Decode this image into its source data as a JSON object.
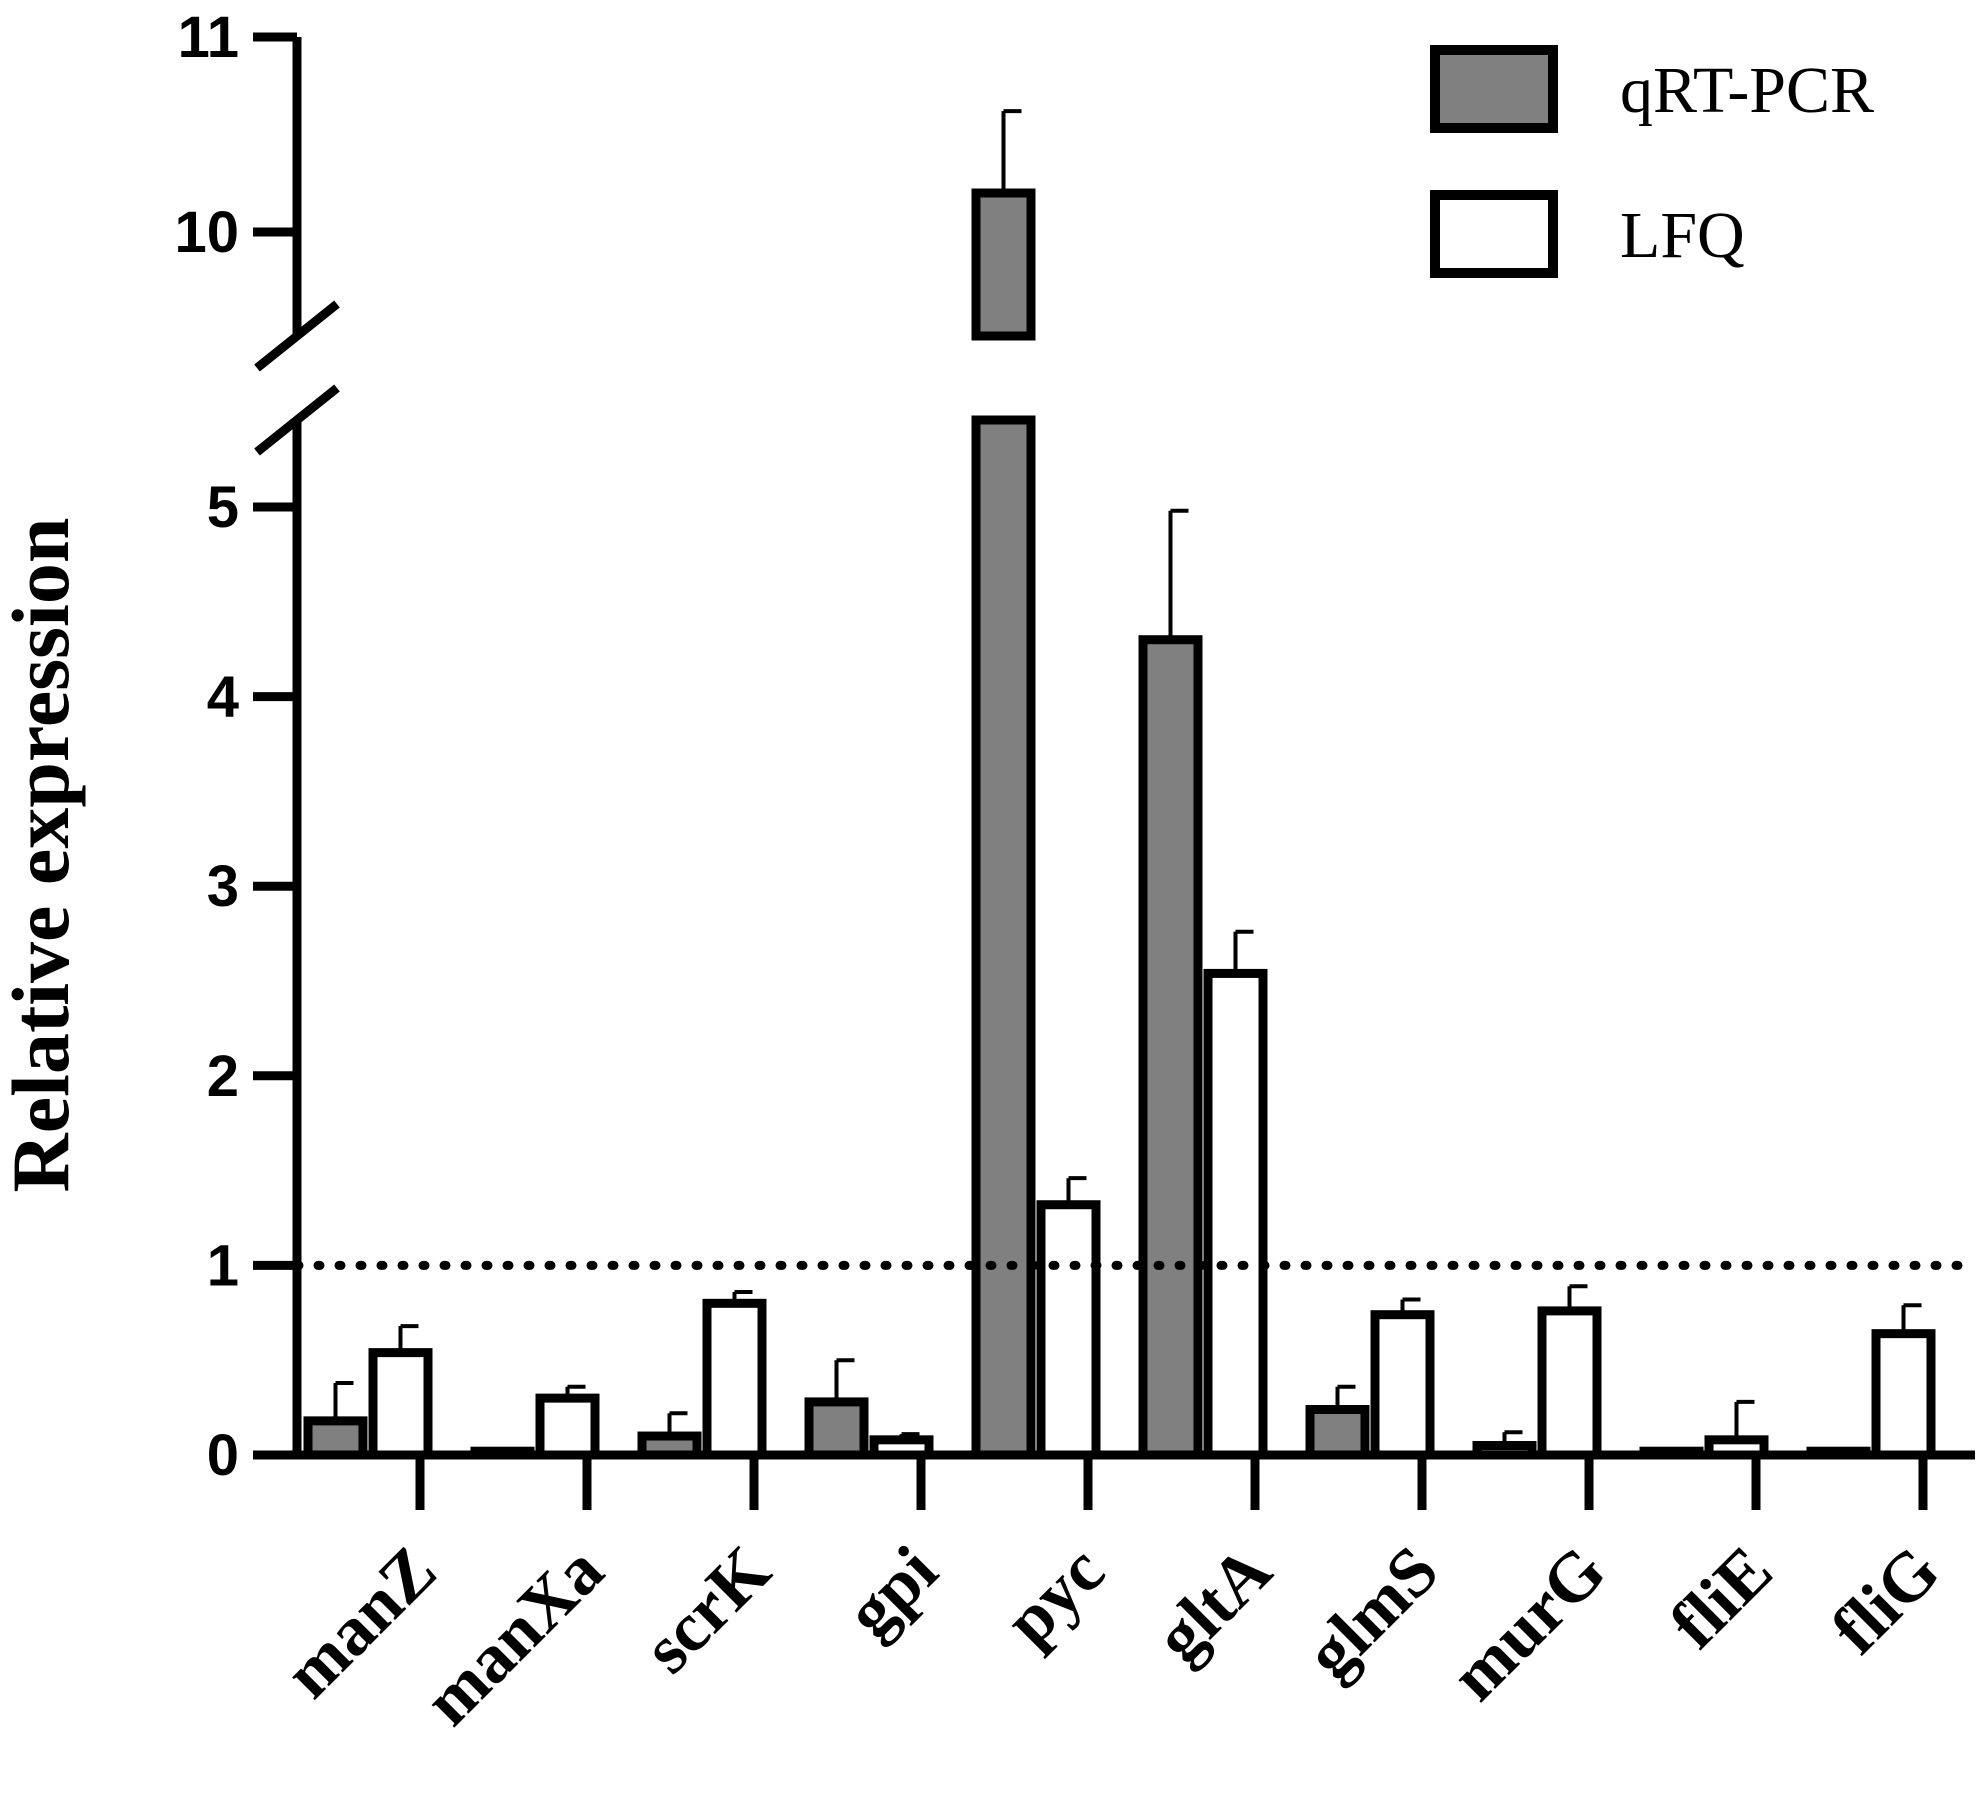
{
  "chart_data": {
    "type": "bar",
    "title": "",
    "xlabel": "",
    "ylabel": "Relative expression",
    "categories": [
      "manZ",
      "manXa",
      "scrK",
      "gpi",
      "pyc",
      "gltA",
      "glmS",
      "murG",
      "fliE",
      "fliG"
    ],
    "series": [
      {
        "name": "qRT-PCR",
        "color": "#808080",
        "values": [
          0.18,
          0.02,
          0.1,
          0.28,
          10.2,
          4.3,
          0.24,
          0.05,
          0.02,
          0.02
        ],
        "errors": [
          0.2,
          0.0,
          0.12,
          0.22,
          0.42,
          0.68,
          0.12,
          0.07,
          0.0,
          0.0
        ]
      },
      {
        "name": "LFQ",
        "color": "#ffffff",
        "values": [
          0.54,
          0.3,
          0.8,
          0.08,
          1.32,
          2.54,
          0.74,
          0.76,
          0.08,
          0.64
        ],
        "errors": [
          0.14,
          0.06,
          0.06,
          0.03,
          0.14,
          0.22,
          0.08,
          0.13,
          0.2,
          0.15
        ]
      }
    ],
    "y_axis": {
      "broken": true,
      "lower_segment": [
        0,
        5.5
      ],
      "upper_segment": [
        9.6,
        11
      ],
      "lower_ticks": [
        "0",
        "1",
        "2",
        "3",
        "4",
        "5"
      ],
      "upper_ticks": [
        "10",
        "11"
      ]
    },
    "reference_line": {
      "y": 1,
      "style": "dotted"
    },
    "legend": {
      "position": "top-right",
      "entries": [
        "qRT-PCR",
        "LFQ"
      ]
    },
    "grid": false
  }
}
